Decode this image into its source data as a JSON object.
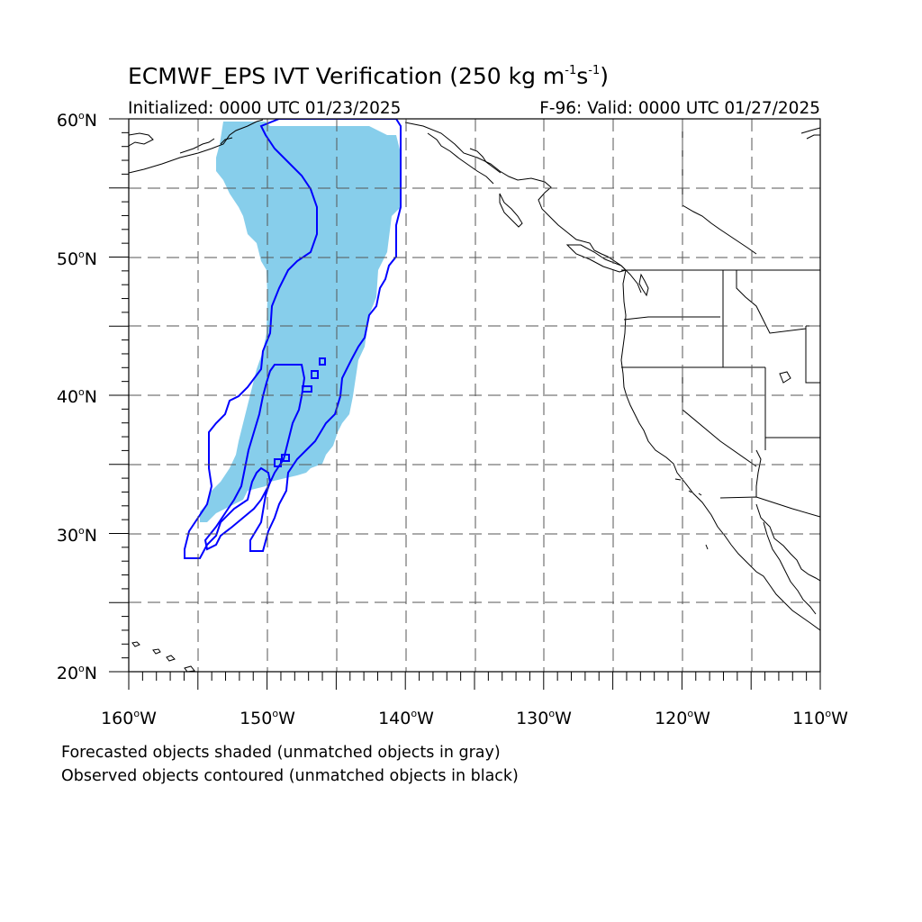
{
  "title": {
    "main": "ECMWF_EPS IVT Verification (250 kg m",
    "exp1": "-1",
    "mid": "s",
    "exp2": "-1",
    "end": ")"
  },
  "initialized": "Initialized: 0000 UTC 01/23/2025",
  "valid": "F-96: Valid: 0000 UTC 01/27/2025",
  "lat_labels": [
    {
      "num": "60",
      "sym": "o",
      "hem": "N"
    },
    {
      "num": "50",
      "sym": "o",
      "hem": "N"
    },
    {
      "num": "40",
      "sym": "o",
      "hem": "N"
    },
    {
      "num": "30",
      "sym": "o",
      "hem": "N"
    },
    {
      "num": "20",
      "sym": "o",
      "hem": "N"
    }
  ],
  "lon_labels": [
    {
      "num": "160",
      "sym": "o",
      "hem": "W"
    },
    {
      "num": "150",
      "sym": "o",
      "hem": "W"
    },
    {
      "num": "140",
      "sym": "o",
      "hem": "W"
    },
    {
      "num": "130",
      "sym": "o",
      "hem": "W"
    },
    {
      "num": "120",
      "sym": "o",
      "hem": "W"
    },
    {
      "num": "110",
      "sym": "o",
      "hem": "W"
    }
  ],
  "notes": {
    "line1": "Forecasted objects shaded (unmatched objects in gray)",
    "line2": "Observed objects contoured (unmatched objects in black)"
  },
  "map": {
    "lat_range": [
      20,
      60
    ],
    "lon_range": [
      -160,
      -110
    ],
    "grid_step_deg": 5,
    "grid_style": "dashed",
    "forecast_fill_color": "#87ceeb",
    "observed_contour_color": "#0000ff",
    "coast_color": "#000000"
  }
}
